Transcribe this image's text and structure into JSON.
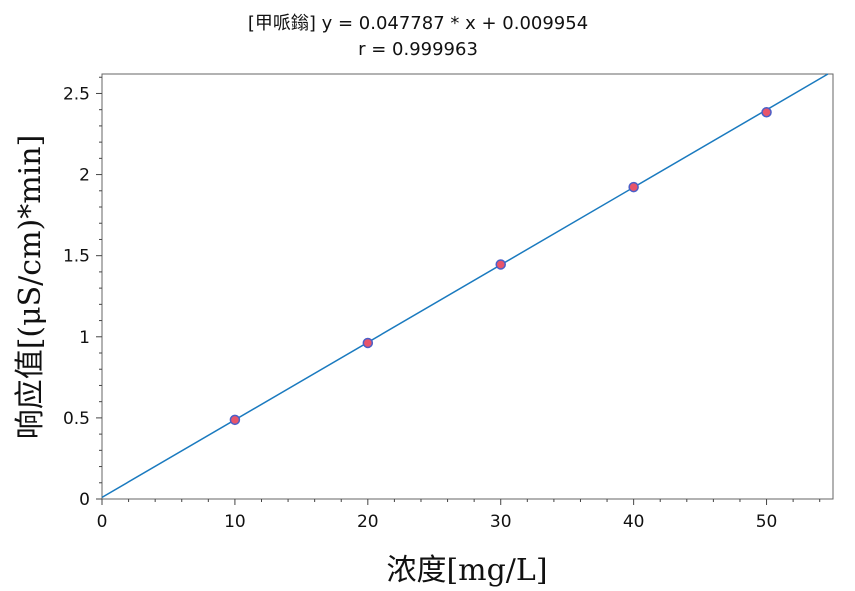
{
  "chart_data": {
    "type": "scatter",
    "title_line1": "[甲哌鎓] y = 0.047787 * x + 0.009954",
    "title_line2": "r = 0.999963",
    "xlabel": "浓度[mg/L]",
    "ylabel": "响应值[(μS/cm)*min]",
    "xlim": [
      0,
      55
    ],
    "ylim": [
      0,
      2.62
    ],
    "x_ticks": [
      0,
      10,
      20,
      30,
      40,
      50
    ],
    "y_ticks": [
      0,
      0.5,
      1,
      1.5,
      2,
      2.5
    ],
    "x_tick_labels": [
      "0",
      "10",
      "20",
      "30",
      "40",
      "50"
    ],
    "y_tick_labels": [
      "0",
      "0.5",
      "1",
      "1.5",
      "2",
      "2.5"
    ],
    "grid": false,
    "fit_line": {
      "slope": 0.047787,
      "intercept": 0.009954,
      "color": "#1a7abf"
    },
    "series": [
      {
        "x": [
          10,
          20,
          30,
          40,
          50
        ],
        "y": [
          0.488,
          0.962,
          1.446,
          1.923,
          2.384
        ],
        "marker_fill": "#e8556a",
        "marker_edge": "#4b5fc8"
      }
    ]
  }
}
